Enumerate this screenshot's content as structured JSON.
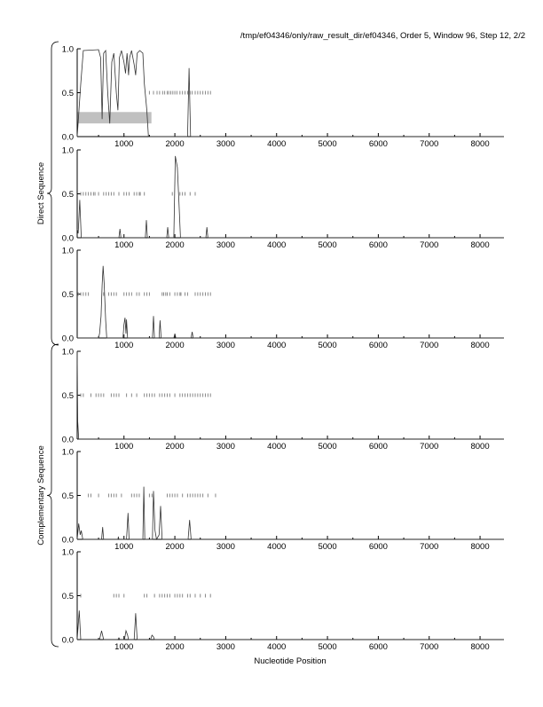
{
  "chart_data": {
    "type": "line",
    "title": "/tmp/ef04346/only/raw_result_dir/ef04346, Order 5, Window 96, Step 12, 2/2",
    "xlabel": "Nucleotide Position",
    "xlim": [
      80,
      8470
    ],
    "ylim": [
      0,
      1
    ],
    "xticks": [
      1000,
      2000,
      3000,
      4000,
      5000,
      6000,
      7000,
      8000
    ],
    "yticks": [
      "0.0",
      "0.5",
      "1.0"
    ],
    "groups": [
      {
        "label": "Direct Sequence",
        "panels": [
          0,
          1,
          2
        ]
      },
      {
        "label": "Complementary Sequence",
        "panels": [
          3,
          4,
          5
        ]
      }
    ],
    "panels": [
      {
        "series": [
          [
            80,
            0
          ],
          [
            150,
            0.6
          ],
          [
            200,
            0.98
          ],
          [
            500,
            0.99
          ],
          [
            540,
            0.9
          ],
          [
            570,
            0.2
          ],
          [
            600,
            0.95
          ],
          [
            640,
            0.98
          ],
          [
            680,
            0.5
          ],
          [
            720,
            0.15
          ],
          [
            760,
            0.85
          ],
          [
            800,
            0.95
          ],
          [
            850,
            0.5
          ],
          [
            880,
            0.3
          ],
          [
            910,
            0.9
          ],
          [
            950,
            0.98
          ],
          [
            1000,
            0.85
          ],
          [
            1030,
            0.72
          ],
          [
            1060,
            0.95
          ],
          [
            1090,
            0.7
          ],
          [
            1110,
            0.9
          ],
          [
            1150,
            0.98
          ],
          [
            1200,
            0.82
          ],
          [
            1230,
            0.7
          ],
          [
            1260,
            0.95
          ],
          [
            1310,
            0.98
          ],
          [
            1370,
            0.95
          ],
          [
            1400,
            0.6
          ],
          [
            1450,
            0.3
          ],
          [
            1480,
            0
          ],
          [
            2250,
            0
          ],
          [
            2280,
            0.78
          ],
          [
            2310,
            0
          ],
          [
            8470,
            0
          ]
        ],
        "stops": [
          1500,
          1580,
          1650,
          1700,
          1760,
          1800,
          1850,
          1880,
          1920,
          1960,
          2000,
          2040,
          2100,
          2150,
          2200,
          2250,
          2300,
          2340,
          2400,
          2450,
          2500,
          2550,
          2600,
          2650,
          2700
        ],
        "highlight": {
          "from": 80,
          "to": 1540,
          "ymin": 0.15,
          "ymax": 0.28
        }
      },
      {
        "series": [
          [
            80,
            0.1
          ],
          [
            100,
            0.05
          ],
          [
            130,
            0.43
          ],
          [
            160,
            0
          ],
          [
            900,
            0
          ],
          [
            920,
            0.1
          ],
          [
            940,
            0
          ],
          [
            1420,
            0
          ],
          [
            1440,
            0.2
          ],
          [
            1460,
            0
          ],
          [
            1840,
            0
          ],
          [
            1860,
            0.12
          ],
          [
            1880,
            0
          ],
          [
            1980,
            0
          ],
          [
            2010,
            0.93
          ],
          [
            2050,
            0.8
          ],
          [
            2080,
            0.4
          ],
          [
            2110,
            0
          ],
          [
            2610,
            0
          ],
          [
            2630,
            0.12
          ],
          [
            2650,
            0
          ],
          [
            8470,
            0
          ]
        ],
        "stops": [
          150,
          200,
          250,
          300,
          350,
          400,
          430,
          500,
          600,
          650,
          700,
          750,
          800,
          900,
          1000,
          1050,
          1100,
          1200,
          1250,
          1300,
          1320,
          1400,
          1950,
          2100,
          2150,
          2200,
          2300,
          2400
        ]
      },
      {
        "series": [
          [
            80,
            0
          ],
          [
            500,
            0
          ],
          [
            520,
            0.05
          ],
          [
            550,
            0.25
          ],
          [
            570,
            0.6
          ],
          [
            590,
            0.82
          ],
          [
            610,
            0.62
          ],
          [
            640,
            0.2
          ],
          [
            660,
            0
          ],
          [
            980,
            0
          ],
          [
            1000,
            0.15
          ],
          [
            1020,
            0.23
          ],
          [
            1040,
            0.05
          ],
          [
            1050,
            0.21
          ],
          [
            1070,
            0
          ],
          [
            1560,
            0
          ],
          [
            1580,
            0.25
          ],
          [
            1600,
            0
          ],
          [
            1690,
            0
          ],
          [
            1710,
            0.2
          ],
          [
            1730,
            0
          ],
          [
            1980,
            0
          ],
          [
            2000,
            0.05
          ],
          [
            2020,
            0
          ],
          [
            2320,
            0
          ],
          [
            2340,
            0.07
          ],
          [
            2360,
            0
          ],
          [
            8470,
            0
          ]
        ],
        "stops": [
          100,
          150,
          200,
          250,
          300,
          600,
          700,
          750,
          800,
          850,
          1000,
          1050,
          1100,
          1150,
          1250,
          1300,
          1400,
          1450,
          1500,
          1750,
          1780,
          1820,
          1850,
          1900,
          2000,
          2050,
          2100,
          2120,
          2200,
          2250,
          2400,
          2450,
          2500,
          2550,
          2600,
          2650,
          2700
        ]
      },
      {
        "series": [
          [
            80,
            1.0
          ],
          [
            90,
            0.2
          ],
          [
            110,
            0
          ],
          [
            8470,
            0
          ]
        ],
        "stops": [
          150,
          200,
          350,
          450,
          500,
          550,
          600,
          750,
          800,
          850,
          900,
          1050,
          1150,
          1250,
          1400,
          1450,
          1500,
          1550,
          1600,
          1700,
          1750,
          1800,
          1850,
          1900,
          2000,
          2100,
          2150,
          2200,
          2250,
          2300,
          2350,
          2400,
          2450,
          2500,
          2550,
          2600,
          2650,
          2700
        ]
      },
      {
        "series": [
          [
            80,
            0
          ],
          [
            110,
            0.18
          ],
          [
            140,
            0.05
          ],
          [
            160,
            0.1
          ],
          [
            190,
            0
          ],
          [
            560,
            0
          ],
          [
            580,
            0.14
          ],
          [
            600,
            0
          ],
          [
            880,
            0
          ],
          [
            890,
            0.03
          ],
          [
            900,
            0
          ],
          [
            1050,
            0
          ],
          [
            1080,
            0.3
          ],
          [
            1100,
            0
          ],
          [
            1370,
            0
          ],
          [
            1390,
            0.6
          ],
          [
            1410,
            0
          ],
          [
            1560,
            0
          ],
          [
            1580,
            0.55
          ],
          [
            1610,
            0.1
          ],
          [
            1640,
            0
          ],
          [
            1690,
            0.05
          ],
          [
            1720,
            0.38
          ],
          [
            1750,
            0
          ],
          [
            2260,
            0
          ],
          [
            2290,
            0.22
          ],
          [
            2320,
            0
          ],
          [
            8470,
            0
          ]
        ],
        "stops": [
          300,
          350,
          500,
          700,
          750,
          800,
          850,
          950,
          1150,
          1200,
          1250,
          1300,
          1500,
          1550,
          1850,
          1900,
          1950,
          2000,
          2050,
          2150,
          2250,
          2300,
          2350,
          2400,
          2450,
          2500,
          2550,
          2650,
          2800
        ]
      },
      {
        "series": [
          [
            80,
            0
          ],
          [
            120,
            0.33
          ],
          [
            150,
            0
          ],
          [
            520,
            0
          ],
          [
            560,
            0.1
          ],
          [
            600,
            0
          ],
          [
            880,
            0
          ],
          [
            900,
            0.02
          ],
          [
            920,
            0
          ],
          [
            1010,
            0
          ],
          [
            1040,
            0.1
          ],
          [
            1070,
            0.05
          ],
          [
            1090,
            0
          ],
          [
            1200,
            0
          ],
          [
            1230,
            0.3
          ],
          [
            1260,
            0
          ],
          [
            1520,
            0
          ],
          [
            1550,
            0.05
          ],
          [
            1580,
            0.03
          ],
          [
            1600,
            0
          ],
          [
            8470,
            0
          ]
        ],
        "stops": [
          150,
          800,
          850,
          900,
          1000,
          1400,
          1450,
          1600,
          1700,
          1750,
          1800,
          1850,
          1900,
          2000,
          2050,
          2100,
          2150,
          2250,
          2300,
          2400,
          2500,
          2600,
          2700
        ]
      }
    ]
  }
}
